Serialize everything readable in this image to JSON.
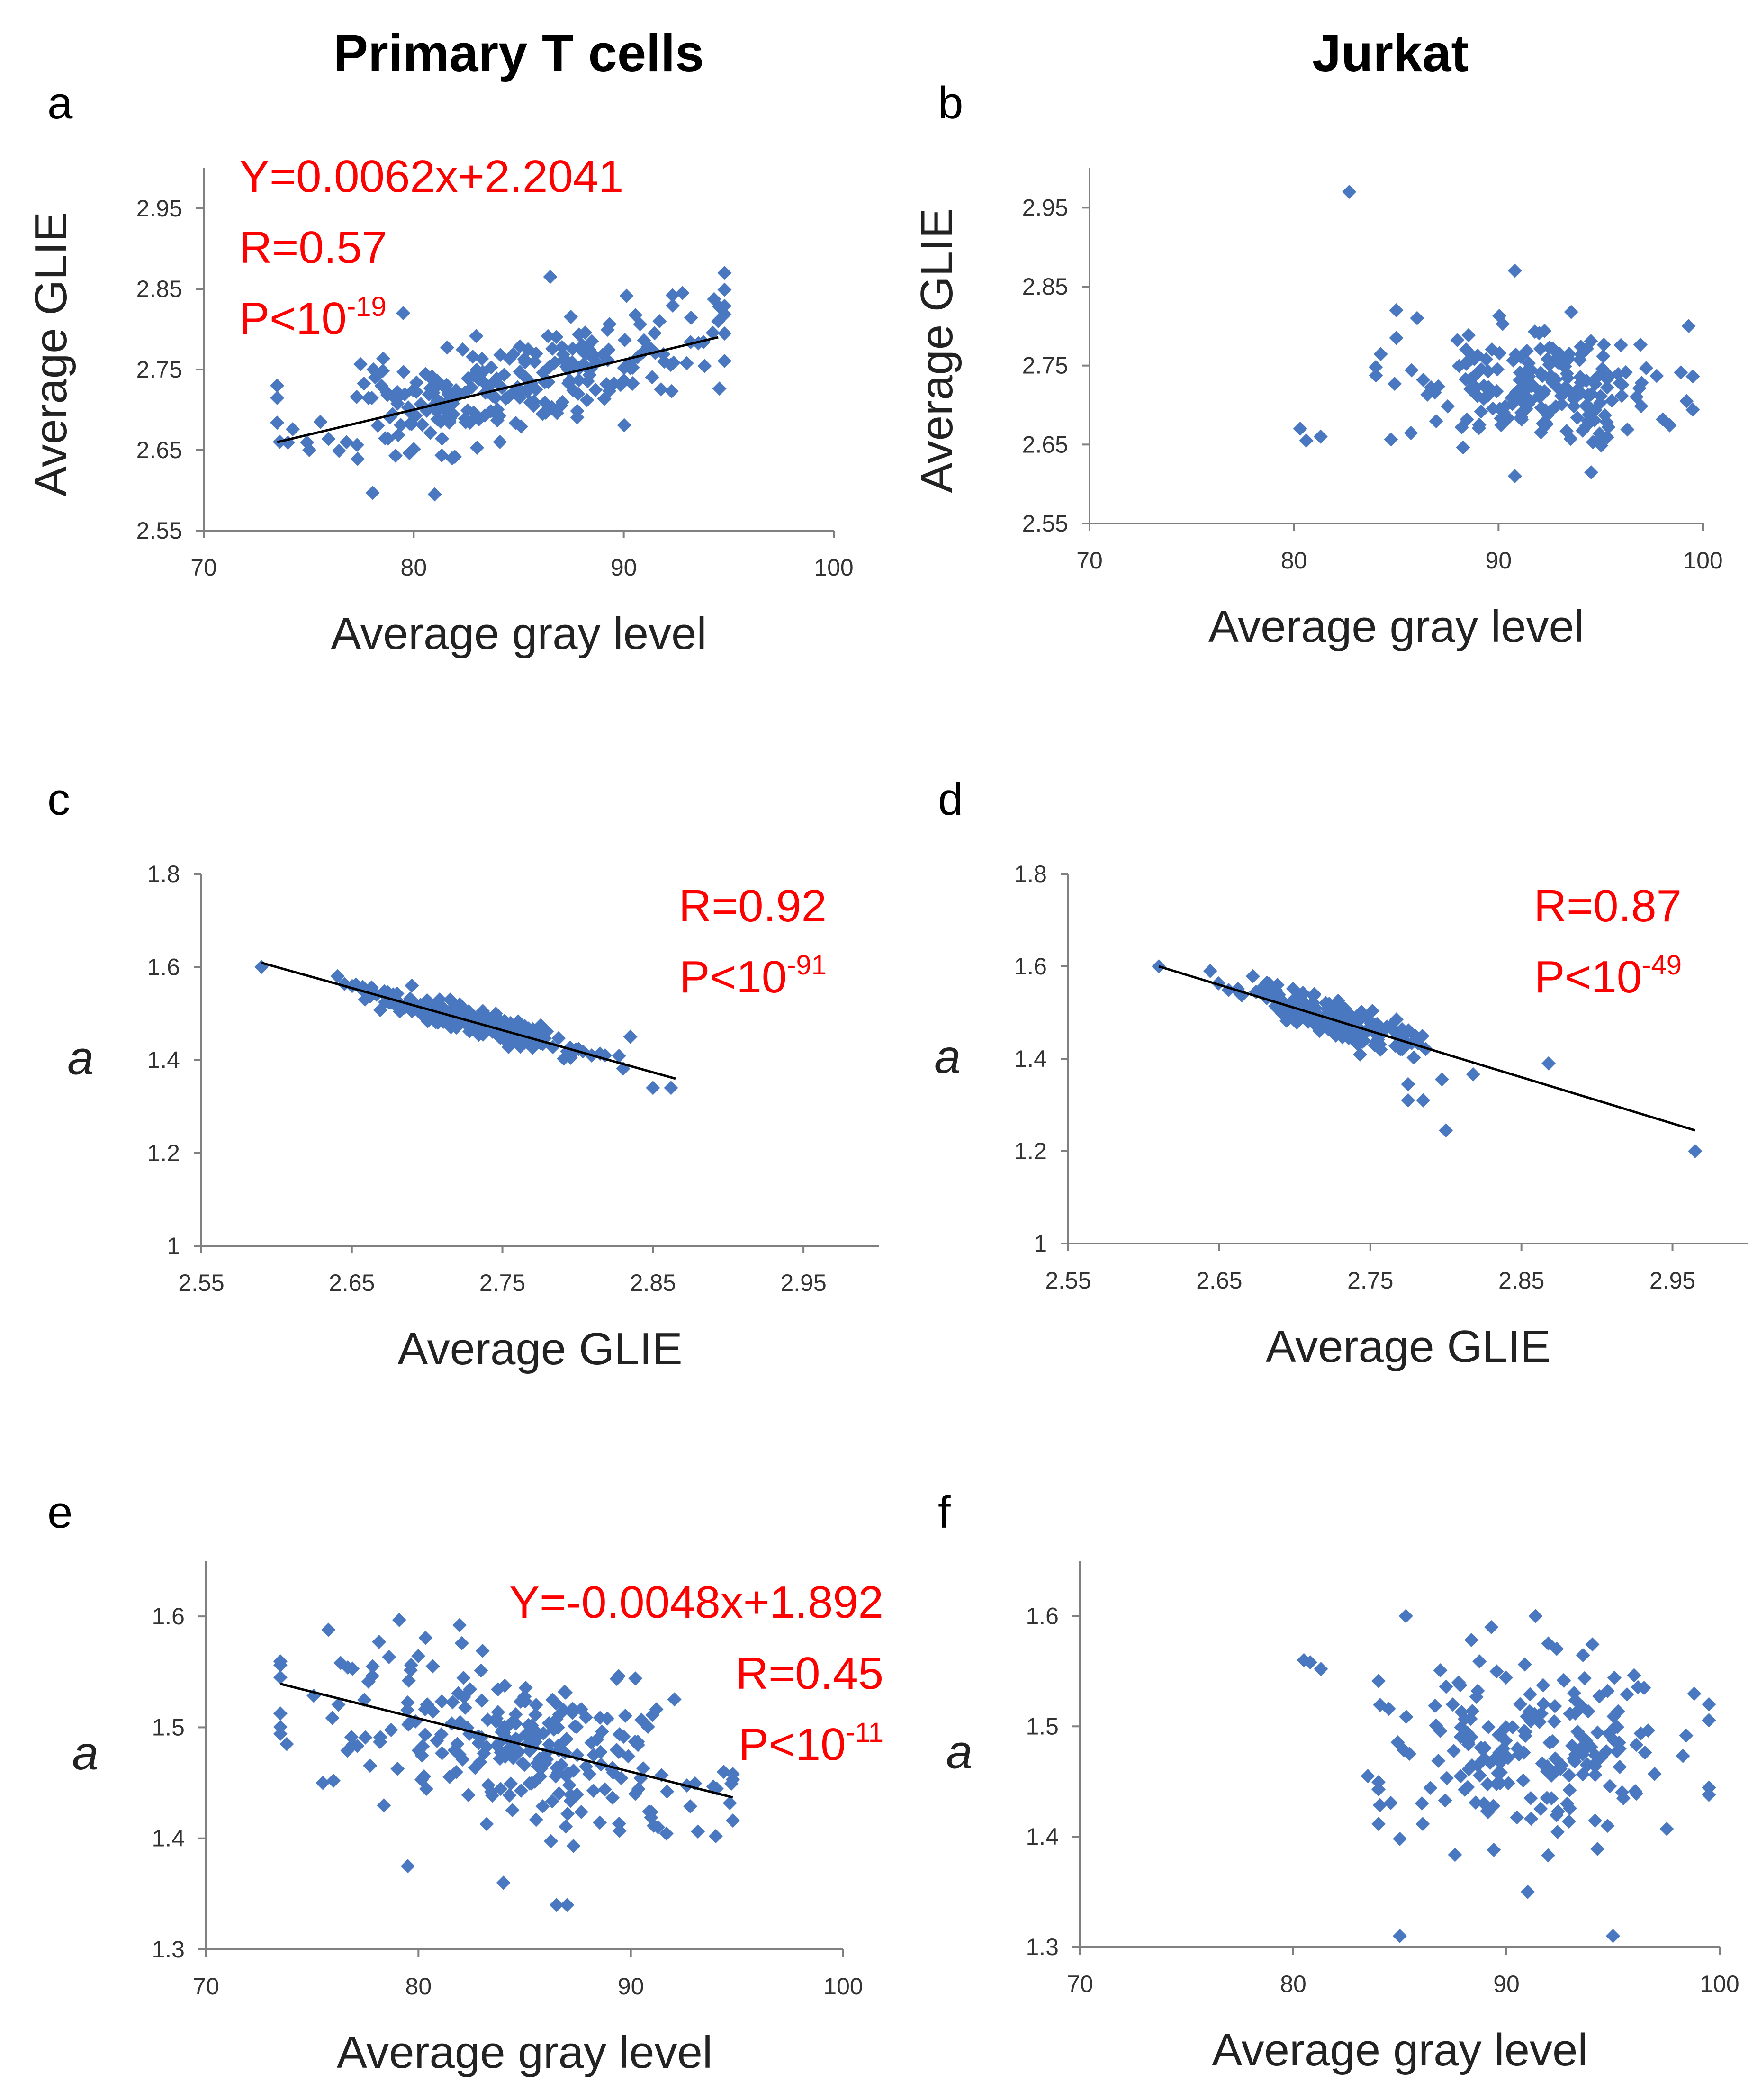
{
  "column_titles": [
    "Primary T cells",
    "Jurkat"
  ],
  "colors": {
    "point": "#4a78c0",
    "annotation": "#ff0000",
    "trendline": "#000000",
    "axis": "#808080"
  },
  "chart_data": [
    {
      "panel": "a",
      "column": "Primary T cells",
      "type": "scatter",
      "xlabel": "Average gray level",
      "ylabel": "Average GLIE",
      "ylabel_italic": false,
      "xlim": [
        70,
        100
      ],
      "ylim": [
        2.55,
        3.0
      ],
      "xticks": [
        "70",
        "80",
        "90",
        "100"
      ],
      "yticks": [
        "2.55",
        "2.65",
        "2.75",
        "2.85",
        "2.95"
      ],
      "trendline": {
        "slope": 0.0062,
        "intercept": 2.2041,
        "x_range": [
          73.5,
          94.5
        ]
      },
      "annotations": [
        {
          "text": "Y=0.0062x+2.2041"
        },
        {
          "text": "R=0.57"
        },
        {
          "text": "P<10",
          "sup": "-19"
        }
      ],
      "annotation_align": "left",
      "seed": 11,
      "n": 260,
      "xmean": 84.5,
      "xsd": 4.6,
      "xclip": [
        73.5,
        94.8
      ],
      "noise": 0.032,
      "yclip": [
        2.59,
        2.87
      ],
      "extra_points": [
        [
          73.5,
          2.73
        ],
        [
          79.5,
          2.82
        ],
        [
          81,
          2.595
        ],
        [
          86.5,
          2.865
        ],
        [
          92.8,
          2.845
        ],
        [
          94.5,
          2.81
        ]
      ]
    },
    {
      "panel": "b",
      "column": "Jurkat",
      "type": "scatter",
      "xlabel": "Average gray level",
      "ylabel": "Average GLIE",
      "ylabel_italic": false,
      "xlim": [
        70,
        100
      ],
      "ylim": [
        2.55,
        3.0
      ],
      "xticks": [
        "70",
        "80",
        "90",
        "100"
      ],
      "yticks": [
        "2.55",
        "2.65",
        "2.75",
        "2.85",
        "2.95"
      ],
      "trendline": null,
      "annotations": [],
      "seed": 22,
      "n": 200,
      "xmean": 91.8,
      "xsd": 3.3,
      "xclip": [
        84,
        99.5
      ],
      "lin": {
        "slope": 0.0,
        "intercept": 2.725
      },
      "noise": 0.033,
      "yclip": [
        2.61,
        2.87
      ],
      "extra_points": [
        [
          82.7,
          2.97
        ],
        [
          80.3,
          2.67
        ],
        [
          80.6,
          2.655
        ],
        [
          81.3,
          2.66
        ],
        [
          85,
          2.82
        ],
        [
          85,
          2.785
        ],
        [
          90.8,
          2.87
        ],
        [
          99.3,
          2.8
        ],
        [
          90.8,
          2.61
        ]
      ]
    },
    {
      "panel": "c",
      "column": "Primary T cells",
      "type": "scatter",
      "xlabel": "Average GLIE",
      "ylabel": "a",
      "ylabel_italic": true,
      "xlim": [
        2.55,
        3.0
      ],
      "ylim": [
        1.0,
        1.8
      ],
      "xticks": [
        "2.55",
        "2.65",
        "2.75",
        "2.85",
        "2.95"
      ],
      "yticks": [
        "1",
        "1.2",
        "1.4",
        "1.6",
        "1.8"
      ],
      "trendline": {
        "slope": -0.906,
        "intercept": 3.9555,
        "x_range": [
          2.59,
          2.865
        ]
      },
      "annotations": [
        {
          "text": "R=0.92"
        },
        {
          "text": "P<10",
          "sup": "-91"
        }
      ],
      "annotation_align": "right",
      "seed": 33,
      "n": 260,
      "xmean": 2.73,
      "xsd": 0.035,
      "xclip": [
        2.62,
        2.86
      ],
      "noise": 0.013,
      "yclip": [
        1.33,
        1.61
      ],
      "extra_points": [
        [
          2.59,
          1.6
        ],
        [
          2.835,
          1.45
        ],
        [
          2.85,
          1.34
        ],
        [
          2.862,
          1.34
        ]
      ]
    },
    {
      "panel": "d",
      "column": "Jurkat",
      "type": "scatter",
      "xlabel": "Average GLIE",
      "ylabel": "a",
      "ylabel_italic": true,
      "xlim": [
        2.55,
        3.0
      ],
      "ylim": [
        1.0,
        1.8
      ],
      "xticks": [
        "2.55",
        "2.65",
        "2.75",
        "2.85",
        "2.95"
      ],
      "yticks": [
        "1",
        "1.2",
        "1.4",
        "1.6",
        "1.8"
      ],
      "trendline": {
        "slope": -1.0,
        "intercept": 4.21,
        "x_range": [
          2.61,
          2.965
        ]
      },
      "annotations": [
        {
          "text": "R=0.87"
        },
        {
          "text": "P<10",
          "sup": "-49"
        }
      ],
      "annotation_align": "right",
      "seed": 44,
      "n": 200,
      "xmean": 2.72,
      "xsd": 0.03,
      "xclip": [
        2.64,
        2.83
      ],
      "noise": 0.018,
      "yclip": [
        1.3,
        1.59
      ],
      "extra_points": [
        [
          2.61,
          1.6
        ],
        [
          2.965,
          1.2
        ],
        [
          2.868,
          1.39
        ],
        [
          2.8,
          1.245
        ],
        [
          2.775,
          1.31
        ],
        [
          2.785,
          1.31
        ],
        [
          2.775,
          1.345
        ]
      ]
    },
    {
      "panel": "e",
      "column": "Primary T cells",
      "type": "scatter",
      "xlabel": "Average gray level",
      "ylabel": "a",
      "ylabel_italic": true,
      "xlim": [
        70,
        100
      ],
      "ylim": [
        1.3,
        1.65
      ],
      "xticks": [
        "70",
        "80",
        "90",
        "100"
      ],
      "yticks": [
        "1.3",
        "1.4",
        "1.5",
        "1.6"
      ],
      "trendline": {
        "slope": -0.0048,
        "intercept": 1.892,
        "x_range": [
          73.5,
          94.8
        ]
      },
      "annotations": [
        {
          "text": "Y=-0.0048x+1.892"
        },
        {
          "text": "R=0.45"
        },
        {
          "text": "P<10",
          "sup": "-11"
        }
      ],
      "annotation_align": "right",
      "seed": 55,
      "n": 260,
      "xmean": 84.5,
      "xsd": 4.6,
      "xclip": [
        73.5,
        94.8
      ],
      "noise": 0.036,
      "yclip": [
        1.34,
        1.6
      ],
      "extra_points": [
        [
          73.8,
          1.485
        ],
        [
          75.5,
          1.45
        ],
        [
          76,
          1.452
        ],
        [
          79.5,
          1.375
        ],
        [
          84,
          1.36
        ],
        [
          86.5,
          1.34
        ],
        [
          87,
          1.34
        ],
        [
          94,
          1.402
        ],
        [
          94.8,
          1.458
        ]
      ]
    },
    {
      "panel": "f",
      "column": "Jurkat",
      "type": "scatter",
      "xlabel": "Average gray level",
      "ylabel": "a",
      "ylabel_italic": true,
      "xlim": [
        70,
        100
      ],
      "ylim": [
        1.3,
        1.65
      ],
      "xticks": [
        "70",
        "80",
        "90",
        "100"
      ],
      "yticks": [
        "1.3",
        "1.4",
        "1.5",
        "1.6"
      ],
      "trendline": null,
      "annotations": [],
      "seed": 66,
      "n": 200,
      "xmean": 91.8,
      "xsd": 3.3,
      "xclip": [
        84,
        99.5
      ],
      "lin": {
        "slope": 0.0,
        "intercept": 1.48
      },
      "noise": 0.038,
      "yclip": [
        1.35,
        1.6
      ],
      "extra_points": [
        [
          80.5,
          1.56
        ],
        [
          80.8,
          1.558
        ],
        [
          81.3,
          1.552
        ],
        [
          85,
          1.31
        ],
        [
          95,
          1.31
        ],
        [
          91,
          1.35
        ],
        [
          85,
          1.398
        ],
        [
          83.5,
          1.455
        ],
        [
          99.5,
          1.438
        ]
      ]
    }
  ]
}
